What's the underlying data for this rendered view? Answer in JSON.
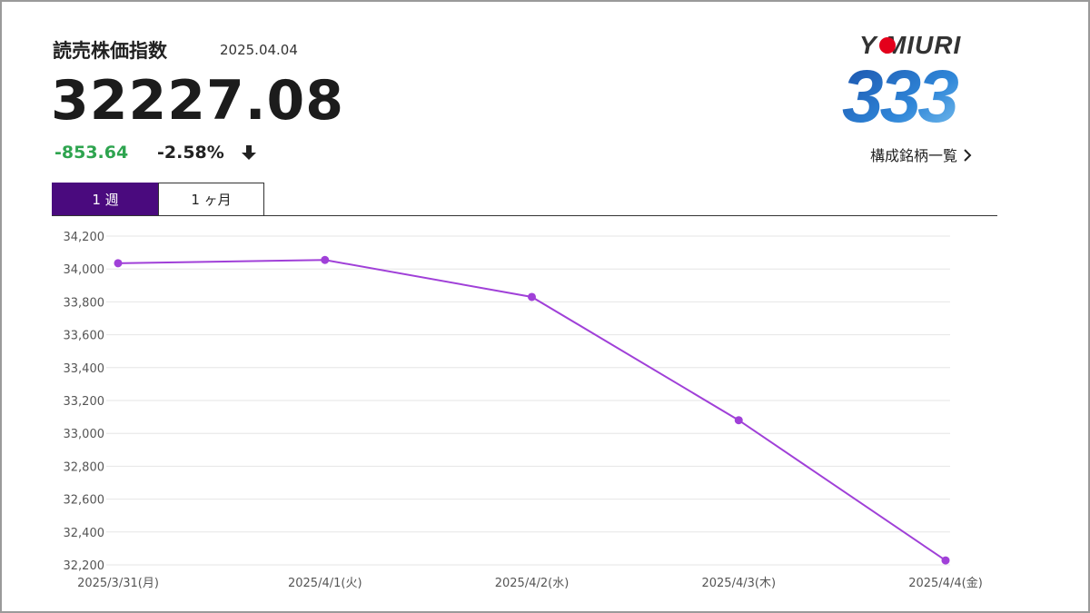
{
  "header": {
    "title": "読売株価指数",
    "date": "2025.04.04",
    "price": "32227.08",
    "change": "-853.64",
    "change_pct": "-2.58%",
    "direction_icon": "arrow-down-icon"
  },
  "logo": {
    "word": "Y  MIURI",
    "number": "333"
  },
  "links": {
    "constituents": "構成銘柄一覧"
  },
  "tabs": [
    {
      "label": "1 週",
      "active": true
    },
    {
      "label": "1 ヶ月",
      "active": false
    }
  ],
  "colors": {
    "accent": "#4a0a7e",
    "positive_change": "#2ea44f",
    "line": "#a040d8",
    "logo_red": "#e4001b",
    "logo_blue": "#2a6fc4"
  },
  "chart_data": {
    "type": "line",
    "title": "",
    "xlabel": "",
    "ylabel": "",
    "categories": [
      "2025/3/31(月)",
      "2025/4/1(火)",
      "2025/4/2(水)",
      "2025/4/3(木)",
      "2025/4/4(金)"
    ],
    "series": [
      {
        "values": [
          34035,
          34055,
          33830,
          33080,
          32227.08
        ]
      }
    ],
    "ylim": [
      32200,
      34200
    ],
    "yticks": [
      32200,
      32400,
      32600,
      32800,
      33000,
      33200,
      33400,
      33600,
      33800,
      34000,
      34200
    ],
    "ytick_labels": [
      "32,200",
      "32,400",
      "32,600",
      "32,800",
      "33,000",
      "33,200",
      "33,400",
      "33,600",
      "33,800",
      "34,000",
      "34,200"
    ],
    "grid": true,
    "markers": true
  }
}
